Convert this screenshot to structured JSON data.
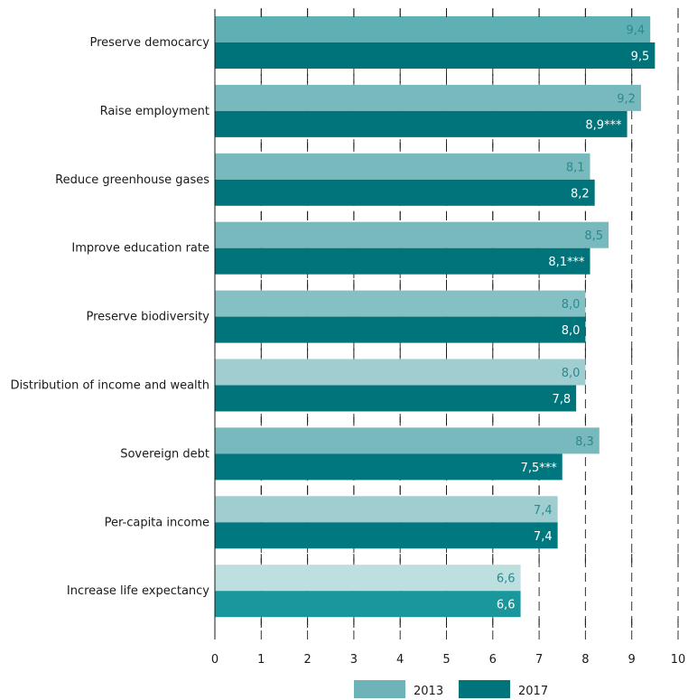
{
  "chart_data": {
    "type": "bar",
    "orientation": "horizontal",
    "categories": [
      "Preserve democarcy",
      "Raise employment",
      "Reduce greenhouse gases",
      "Improve education rate",
      "Preserve biodiversity",
      "Distribution of income and wealth",
      "Sovereign debt",
      "Per-capita income",
      "Increase life expectancy"
    ],
    "series": [
      {
        "name": "2013",
        "values": [
          9.4,
          9.2,
          8.1,
          8.5,
          8.0,
          8.0,
          8.3,
          7.4,
          6.6
        ],
        "labels": [
          "9,4",
          "9,2",
          "8,1",
          "8,5",
          "8,0",
          "8,0",
          "8,3",
          "7,4",
          "6,6"
        ],
        "colors": [
          "#5fb0b5",
          "#77b9bc",
          "#77b9bc",
          "#77b9bc",
          "#85c1c4",
          "#9fcdd0",
          "#77b9bc",
          "#9fcdd0",
          "#bddfe0"
        ]
      },
      {
        "name": "2017",
        "values": [
          9.5,
          8.9,
          8.2,
          8.1,
          8.0,
          7.8,
          7.5,
          7.4,
          6.6
        ],
        "labels": [
          "9,5",
          "8,9***",
          "8,2",
          "8,1***",
          "8,0",
          "7,8",
          "7,5***",
          "7,4",
          "6,6"
        ],
        "colors": [
          "#00727a",
          "#00737b",
          "#00737b",
          "#00737b",
          "#00747b",
          "#00747b",
          "#00767e",
          "#00787f",
          "#1a979c"
        ]
      }
    ],
    "xlim": [
      0,
      10
    ],
    "xticks": [
      "0",
      "1",
      "2",
      "3",
      "4",
      "5",
      "6",
      "7",
      "8",
      "9",
      "10"
    ],
    "grid": "vertical dashed",
    "legend": {
      "position": "bottom",
      "entries": [
        {
          "name": "2013",
          "color": "#6eb3b7"
        },
        {
          "name": "2017",
          "color": "#00747b"
        }
      ]
    },
    "label_color_2013": "#2a8a90",
    "label_color_2017": "#ffffff"
  }
}
